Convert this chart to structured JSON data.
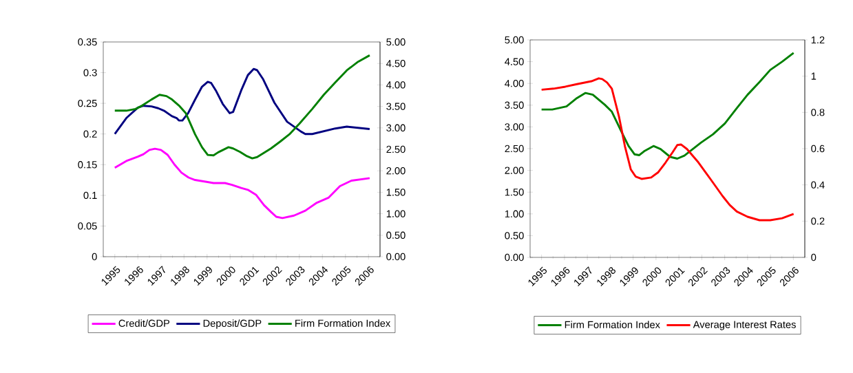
{
  "chart_data": [
    {
      "type": "line",
      "legend": "bottom",
      "xlim": [
        1994.5,
        2006.5
      ],
      "xticks": [
        {
          "value": 1995,
          "label": "1995"
        },
        {
          "value": 1996,
          "label": "1996"
        },
        {
          "value": 1997,
          "label": "1997"
        },
        {
          "value": 1998,
          "label": "1998"
        },
        {
          "value": 1999,
          "label": "1999"
        },
        {
          "value": 2000,
          "label": "2000"
        },
        {
          "value": 2001,
          "label": "2001"
        },
        {
          "value": 2002,
          "label": "2002"
        },
        {
          "value": 2003,
          "label": "2003"
        },
        {
          "value": 2004,
          "label": "2004"
        },
        {
          "value": 2005,
          "label": "2005"
        },
        {
          "value": 2006,
          "label": "2006"
        },
        {
          "value": 1994.5,
          "label": null
        },
        {
          "value": 1995.5,
          "label": null
        },
        {
          "value": 1996.5,
          "label": null
        },
        {
          "value": 1997.5,
          "label": null
        },
        {
          "value": 1998.5,
          "label": null
        },
        {
          "value": 1999.5,
          "label": null
        },
        {
          "value": 2000.5,
          "label": null
        },
        {
          "value": 2001.5,
          "label": null
        },
        {
          "value": 2002.5,
          "label": null
        },
        {
          "value": 2003.5,
          "label": null
        },
        {
          "value": 2004.5,
          "label": null
        },
        {
          "value": 2005.5,
          "label": null
        },
        {
          "value": 2006.5,
          "label": null
        }
      ],
      "ylim": [
        0,
        0.35
      ],
      "yticks": [
        0,
        0.05,
        0.1,
        0.15,
        0.2,
        0.25,
        0.3,
        0.35
      ],
      "y2lim": [
        0,
        5
      ],
      "y2ticks": [
        {
          "value": 0,
          "label": "0.00"
        },
        {
          "value": 0.5,
          "label": "0.50"
        },
        {
          "value": 1,
          "label": "1.00"
        },
        {
          "value": 1.5,
          "label": "1.50"
        },
        {
          "value": 2,
          "label": "2.00"
        },
        {
          "value": 2.5,
          "label": "2.50"
        },
        {
          "value": 3,
          "label": "3.00"
        },
        {
          "value": 3.5,
          "label": "3.50"
        },
        {
          "value": 4,
          "label": "4.00"
        },
        {
          "value": 4.5,
          "label": "4.50"
        },
        {
          "value": 5,
          "label": "5.00"
        }
      ],
      "series": [
        {
          "name": "Credit/GDP",
          "color": "#ff00ff",
          "x": [
            1995.0,
            1995.5,
            1996.0,
            1996.24,
            1996.5,
            1996.74,
            1997.0,
            1997.29,
            1997.59,
            1997.89,
            1998.2,
            1998.48,
            1998.98,
            1999.28,
            1999.78,
            2000.08,
            2000.48,
            2000.77,
            2001.12,
            2001.47,
            2001.77,
            2002.0,
            2002.27,
            2002.77,
            2003.26,
            2003.76,
            2004.26,
            2004.76,
            2005.26,
            2006.05
          ],
          "values": [
            0.145,
            0.156,
            0.163,
            0.167,
            0.174,
            0.176,
            0.174,
            0.166,
            0.15,
            0.137,
            0.129,
            0.125,
            0.122,
            0.12,
            0.12,
            0.117,
            0.112,
            0.109,
            0.101,
            0.084,
            0.073,
            0.065,
            0.063,
            0.067,
            0.075,
            0.088,
            0.096,
            0.115,
            0.124,
            0.128
          ]
        },
        {
          "name": "Deposit/GDP",
          "color": "#000080",
          "x": [
            1995.0,
            1995.5,
            1996.0,
            1996.24,
            1996.59,
            1996.88,
            1997.13,
            1997.48,
            1997.68,
            1997.78,
            1997.93,
            1998.18,
            1998.48,
            1998.78,
            1999.03,
            1999.18,
            1999.38,
            1999.68,
            1999.98,
            2000.13,
            2000.48,
            2000.77,
            2001.02,
            2001.17,
            2001.42,
            2001.92,
            2002.47,
            2003.07,
            2003.26,
            2003.56,
            2004.56,
            2005.06,
            2006.05
          ],
          "values": [
            0.2,
            0.226,
            0.243,
            0.246,
            0.245,
            0.242,
            0.238,
            0.229,
            0.226,
            0.222,
            0.222,
            0.234,
            0.256,
            0.277,
            0.285,
            0.283,
            0.271,
            0.249,
            0.234,
            0.236,
            0.271,
            0.296,
            0.306,
            0.304,
            0.29,
            0.251,
            0.22,
            0.204,
            0.2,
            0.2,
            0.209,
            0.212,
            0.208
          ]
        },
        {
          "name": "Firm Formation Index",
          "color": "#008000",
          "axis": "y2",
          "x": [
            1995.0,
            1995.5,
            1995.9,
            1996.19,
            1996.59,
            1996.94,
            1997.24,
            1997.48,
            1997.78,
            1998.08,
            1998.48,
            1998.78,
            1999.03,
            1999.28,
            1999.48,
            1999.78,
            1999.93,
            2000.13,
            2000.43,
            2000.73,
            2000.96,
            2001.17,
            2001.47,
            2001.77,
            2002.17,
            2002.57,
            2003.01,
            2003.56,
            2004.06,
            2004.56,
            2005.06,
            2005.55,
            2006.05
          ],
          "values": [
            3.4,
            3.4,
            3.44,
            3.52,
            3.66,
            3.77,
            3.74,
            3.66,
            3.52,
            3.34,
            2.85,
            2.55,
            2.37,
            2.36,
            2.43,
            2.51,
            2.55,
            2.52,
            2.44,
            2.34,
            2.29,
            2.32,
            2.42,
            2.52,
            2.68,
            2.85,
            3.1,
            3.44,
            3.77,
            4.06,
            4.34,
            4.54,
            4.69
          ]
        }
      ]
    },
    {
      "type": "line",
      "legend": "bottom",
      "xlim": [
        1994.5,
        2006.5
      ],
      "xticks": [
        {
          "value": 1995,
          "label": "1995"
        },
        {
          "value": 1996,
          "label": "1996"
        },
        {
          "value": 1997,
          "label": "1997"
        },
        {
          "value": 1998,
          "label": "1998"
        },
        {
          "value": 1999,
          "label": "1999"
        },
        {
          "value": 2000,
          "label": "2000"
        },
        {
          "value": 2001,
          "label": "2001"
        },
        {
          "value": 2002,
          "label": "2002"
        },
        {
          "value": 2003,
          "label": "2003"
        },
        {
          "value": 2004,
          "label": "2004"
        },
        {
          "value": 2005,
          "label": "2005"
        },
        {
          "value": 2006,
          "label": "2006"
        },
        {
          "value": 1994.5,
          "label": null
        },
        {
          "value": 1995.5,
          "label": null
        },
        {
          "value": 1996.5,
          "label": null
        },
        {
          "value": 1997.5,
          "label": null
        },
        {
          "value": 1998.5,
          "label": null
        },
        {
          "value": 1999.5,
          "label": null
        },
        {
          "value": 2000.5,
          "label": null
        },
        {
          "value": 2001.5,
          "label": null
        },
        {
          "value": 2002.5,
          "label": null
        },
        {
          "value": 2003.5,
          "label": null
        },
        {
          "value": 2004.5,
          "label": null
        },
        {
          "value": 2005.5,
          "label": null
        },
        {
          "value": 2006.5,
          "label": null
        }
      ],
      "ylim": [
        0,
        5
      ],
      "yticks": [
        {
          "value": 0,
          "label": "0.00"
        },
        {
          "value": 0.5,
          "label": "0.50"
        },
        {
          "value": 1,
          "label": "1.00"
        },
        {
          "value": 1.5,
          "label": "1.50"
        },
        {
          "value": 2,
          "label": "2.00"
        },
        {
          "value": 2.5,
          "label": "2.50"
        },
        {
          "value": 3,
          "label": "3.00"
        },
        {
          "value": 3.5,
          "label": "3.50"
        },
        {
          "value": 4,
          "label": "4.00"
        },
        {
          "value": 4.5,
          "label": "4.50"
        },
        {
          "value": 5,
          "label": "5.00"
        }
      ],
      "y2lim": [
        0,
        1.2
      ],
      "y2ticks": [
        0,
        0.2,
        0.4,
        0.6,
        0.8,
        1,
        1.2
      ],
      "series": [
        {
          "name": "Firm Formation Index",
          "color": "#008000",
          "x": [
            1995.0,
            1995.47,
            1996.09,
            1996.51,
            1996.92,
            1997.24,
            1997.76,
            1998.07,
            1998.49,
            1998.8,
            1999.06,
            1999.27,
            1999.48,
            1999.89,
            2000.2,
            2000.62,
            2000.93,
            2001.24,
            2001.97,
            2002.49,
            2003.01,
            2003.53,
            2004.0,
            2004.52,
            2004.99,
            2005.51,
            2006.01
          ],
          "values": [
            3.4,
            3.4,
            3.47,
            3.65,
            3.78,
            3.74,
            3.51,
            3.35,
            2.89,
            2.56,
            2.37,
            2.35,
            2.44,
            2.56,
            2.49,
            2.31,
            2.27,
            2.34,
            2.64,
            2.83,
            3.08,
            3.43,
            3.74,
            4.03,
            4.31,
            4.5,
            4.7
          ]
        },
        {
          "name": "Average Interest Rates",
          "color": "#ff0000",
          "axis": "y2",
          "x": [
            1995.0,
            1995.52,
            1996.04,
            1996.51,
            1997.18,
            1997.5,
            1997.65,
            1997.86,
            1998.07,
            1998.38,
            1998.64,
            1998.9,
            1999.11,
            1999.37,
            1999.79,
            2000.1,
            2000.41,
            2000.73,
            2000.93,
            2001.09,
            2001.35,
            2001.82,
            2002.39,
            2002.91,
            2003.22,
            2003.53,
            2004.0,
            2004.52,
            2004.99,
            2005.51,
            2006.01
          ],
          "values": [
            0.925,
            0.931,
            0.942,
            0.955,
            0.972,
            0.988,
            0.984,
            0.965,
            0.931,
            0.778,
            0.614,
            0.485,
            0.446,
            0.433,
            0.441,
            0.47,
            0.522,
            0.581,
            0.62,
            0.623,
            0.598,
            0.529,
            0.43,
            0.338,
            0.289,
            0.253,
            0.224,
            0.205,
            0.205,
            0.216,
            0.24
          ]
        }
      ]
    }
  ]
}
